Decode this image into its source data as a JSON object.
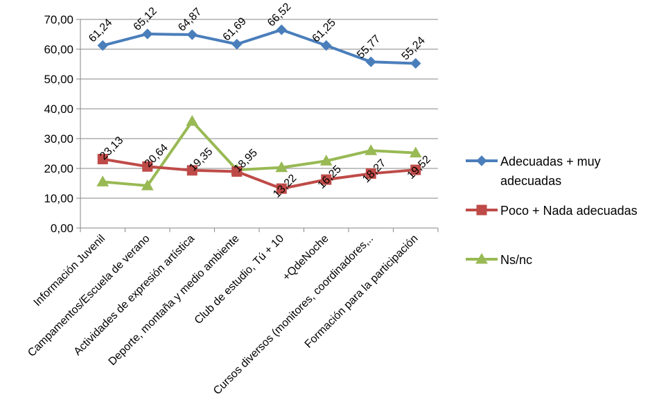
{
  "chart_data": {
    "type": "line",
    "categories": [
      "Información Juvenil",
      "Campamentos/Escuela de verano",
      "Actividades de expresión artística",
      "Deporte, montaña y medio ambiente",
      "Club de estudio, Tú + 10",
      "+QdeNoche",
      "Cursos diversos (monitores, coordinadores,..",
      "Formación para la participación"
    ],
    "series": [
      {
        "name": "Adecuadas + muy adecuadas",
        "legend_lines": [
          "Adecuadas + muy",
          "adecuadas"
        ],
        "color": "#4a7ebb",
        "marker": "diamond",
        "values": [
          61.24,
          65.12,
          64.87,
          61.69,
          66.52,
          61.25,
          55.77,
          55.24
        ],
        "labels": [
          "61,24",
          "65,12",
          "64,87",
          "61,69",
          "66,52",
          "61,25",
          "55,77",
          "55,24"
        ]
      },
      {
        "name": "Poco + Nada adecuadas",
        "legend_lines": [
          "Poco + Nada  adecuadas"
        ],
        "color": "#be4b48",
        "marker": "square",
        "values": [
          23.13,
          20.64,
          19.35,
          18.95,
          13.22,
          16.25,
          18.27,
          19.52
        ],
        "labels": [
          "23,13",
          "20,64",
          "19,35",
          "18,95",
          "13,22",
          "16,25",
          "18,27",
          "19,52"
        ]
      },
      {
        "name": "Ns/nc",
        "legend_lines": [
          "Ns/nc"
        ],
        "color": "#98b954",
        "marker": "triangle",
        "values": [
          15.5,
          14.2,
          35.8,
          19.5,
          20.3,
          22.5,
          26.0,
          25.2
        ],
        "labels": []
      }
    ],
    "y_ticks": [
      "0,00",
      "10,00",
      "20,00",
      "30,00",
      "40,00",
      "50,00",
      "60,00",
      "70,00"
    ],
    "ylim": [
      0,
      70
    ],
    "grid": true,
    "legend_position": "right"
  }
}
